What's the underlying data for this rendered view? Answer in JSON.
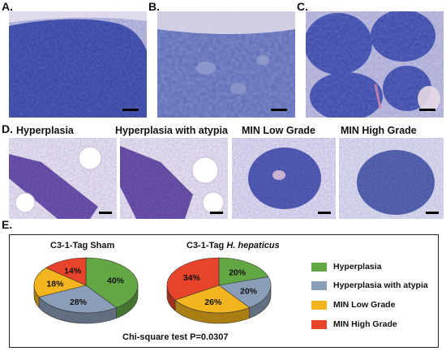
{
  "panels": {
    "a_label": "A.",
    "b_label": "B.",
    "c_label": "C.",
    "d_label": "D.",
    "e_label": "E."
  },
  "d_titles": [
    "Hyperplasia",
    "Hyperplasia with atypia",
    "MIN Low Grade",
    "MIN High Grade"
  ],
  "colors": {
    "hyperplasia": "#62a744",
    "atypia": "#8b9eb8",
    "min_low": "#f2b51d",
    "min_high": "#e8432b",
    "tissue_dark": "#2f3a9c",
    "tissue_light": "#e9e3ef"
  },
  "chart_data": [
    {
      "type": "pie",
      "title": "C3-1-Tag Sham",
      "categories": [
        "Hyperplasia",
        "Hyperplasia with atypia",
        "MIN Low Grade",
        "MIN High Grade"
      ],
      "values": [
        40,
        28,
        18,
        14
      ],
      "labels": [
        "40%",
        "28%",
        "18%",
        "14%"
      ]
    },
    {
      "type": "pie",
      "title_prefix": "C3-1-Tag ",
      "title_italic": "H. hepaticus",
      "categories": [
        "Hyperplasia",
        "Hyperplasia with atypia",
        "MIN Low Grade",
        "MIN High Grade"
      ],
      "values": [
        20,
        20,
        26,
        34
      ],
      "labels": [
        "20%",
        "20%",
        "26%",
        "34%"
      ]
    }
  ],
  "legend": [
    {
      "label": "Hyperplasia",
      "color": "#62a744"
    },
    {
      "label": "Hyperplasia with atypia",
      "color": "#8b9eb8"
    },
    {
      "label": "MIN Low Grade",
      "color": "#f2b51d"
    },
    {
      "label": "MIN High Grade",
      "color": "#e8432b"
    }
  ],
  "stat_text": "Chi-square test P=0.0307"
}
